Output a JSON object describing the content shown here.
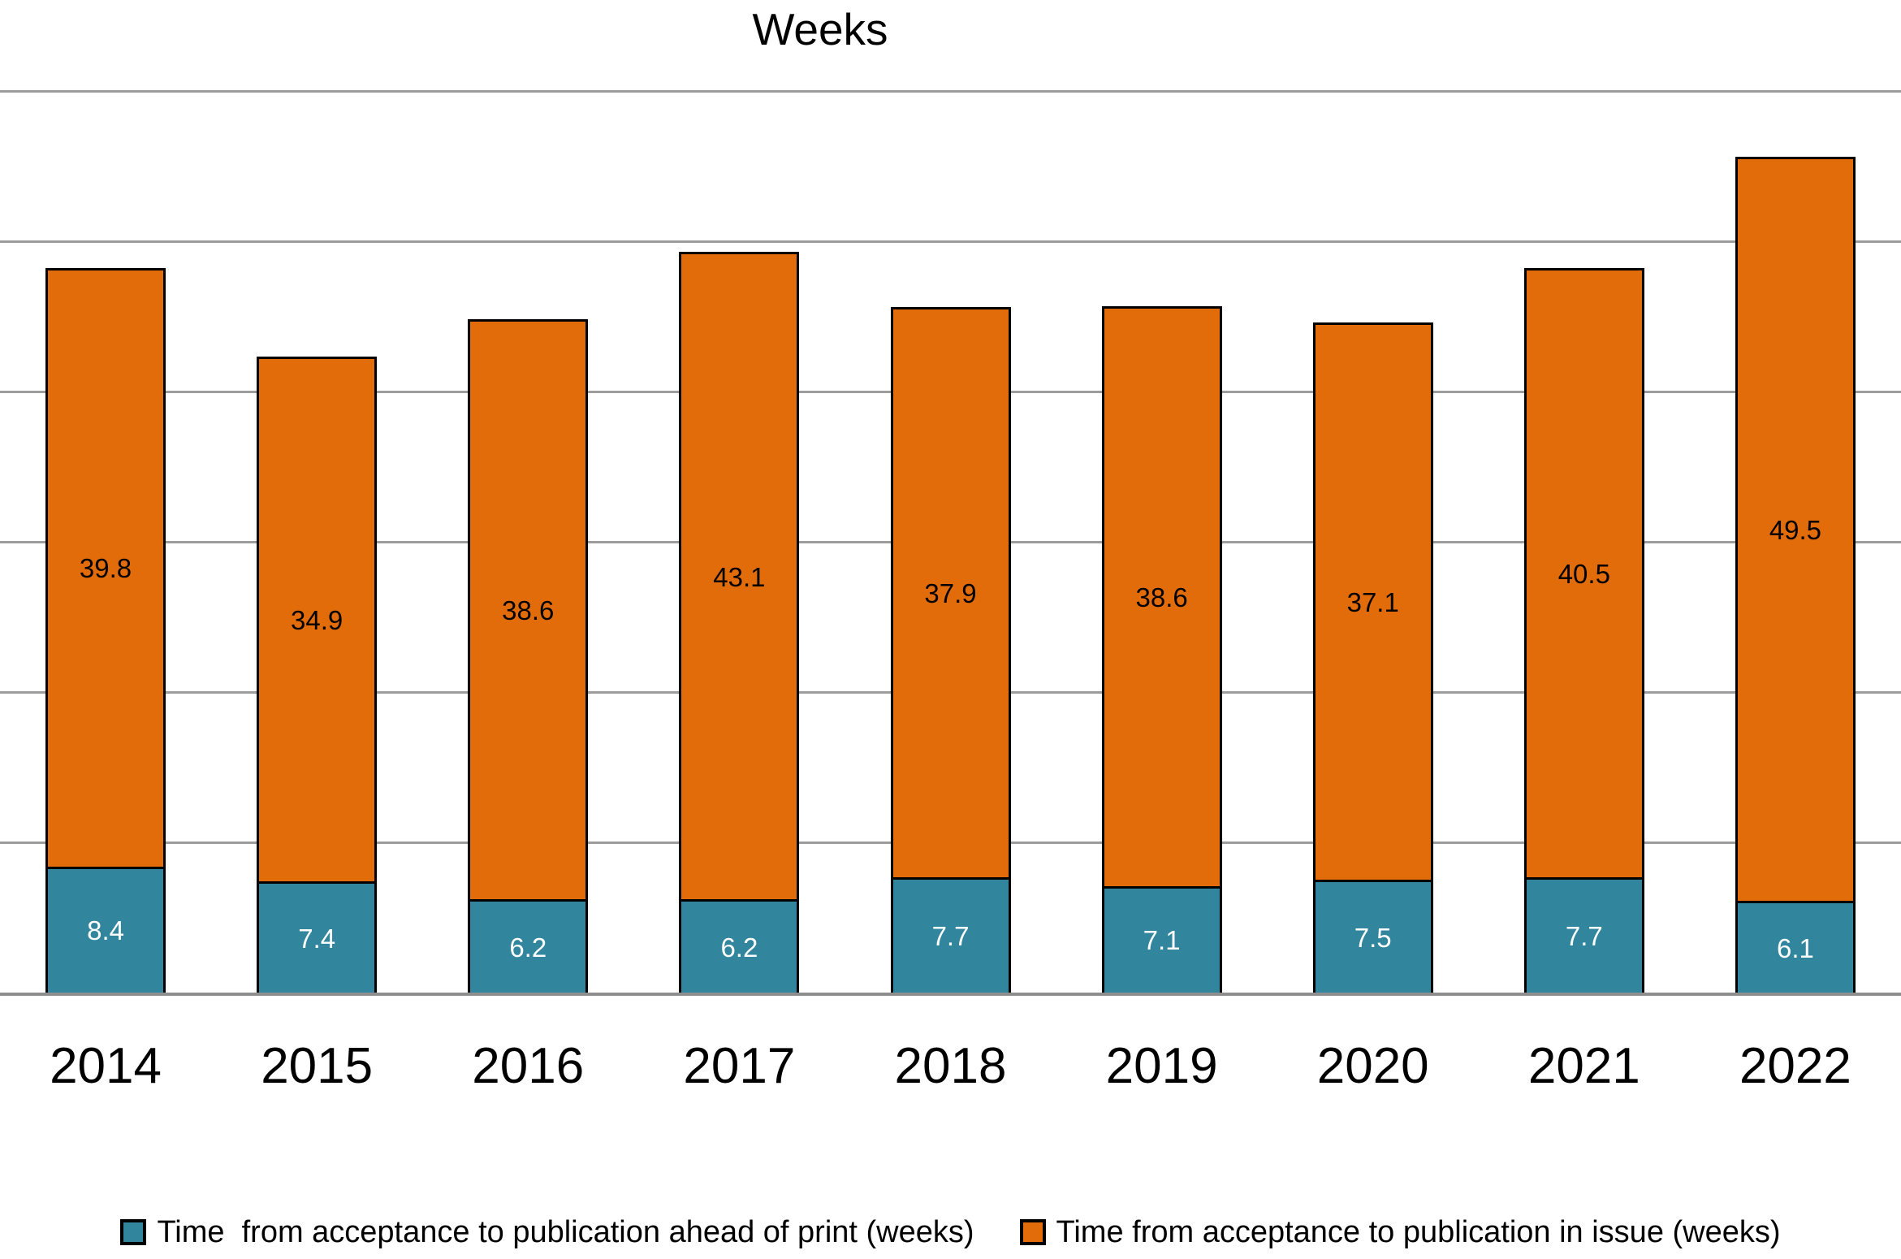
{
  "chart_data": {
    "type": "bar",
    "stacked": true,
    "title": "Weeks",
    "categories": [
      "2014",
      "2015",
      "2016",
      "2017",
      "2018",
      "2019",
      "2020",
      "2021",
      "2022"
    ],
    "series": [
      {
        "name": "Time  from acceptance to publication ahead of print (weeks)",
        "color": "#31859C",
        "label_color": "#FFFFFF",
        "values": [
          8.4,
          7.4,
          6.2,
          6.2,
          7.7,
          7.1,
          7.5,
          7.7,
          6.1
        ]
      },
      {
        "name": "Time from acceptance to publication in issue (weeks)",
        "color": "#E36C0A",
        "label_color": "#000000",
        "values": [
          39.8,
          34.9,
          38.6,
          43.1,
          37.9,
          38.6,
          37.1,
          40.5,
          49.5
        ]
      }
    ],
    "xlabel": "",
    "ylabel": "",
    "ylim": [
      0,
      60
    ],
    "gridline_interval": 10,
    "grid": true,
    "y_tick_labels_shown": false,
    "legend_position": "bottom",
    "styles": {
      "gridline_color": "#9C9C9C",
      "axis_line_color": "#8F8F8F",
      "bar_border_color": "#000000",
      "background": "#FFFFFF",
      "text_color": "#000000"
    }
  }
}
